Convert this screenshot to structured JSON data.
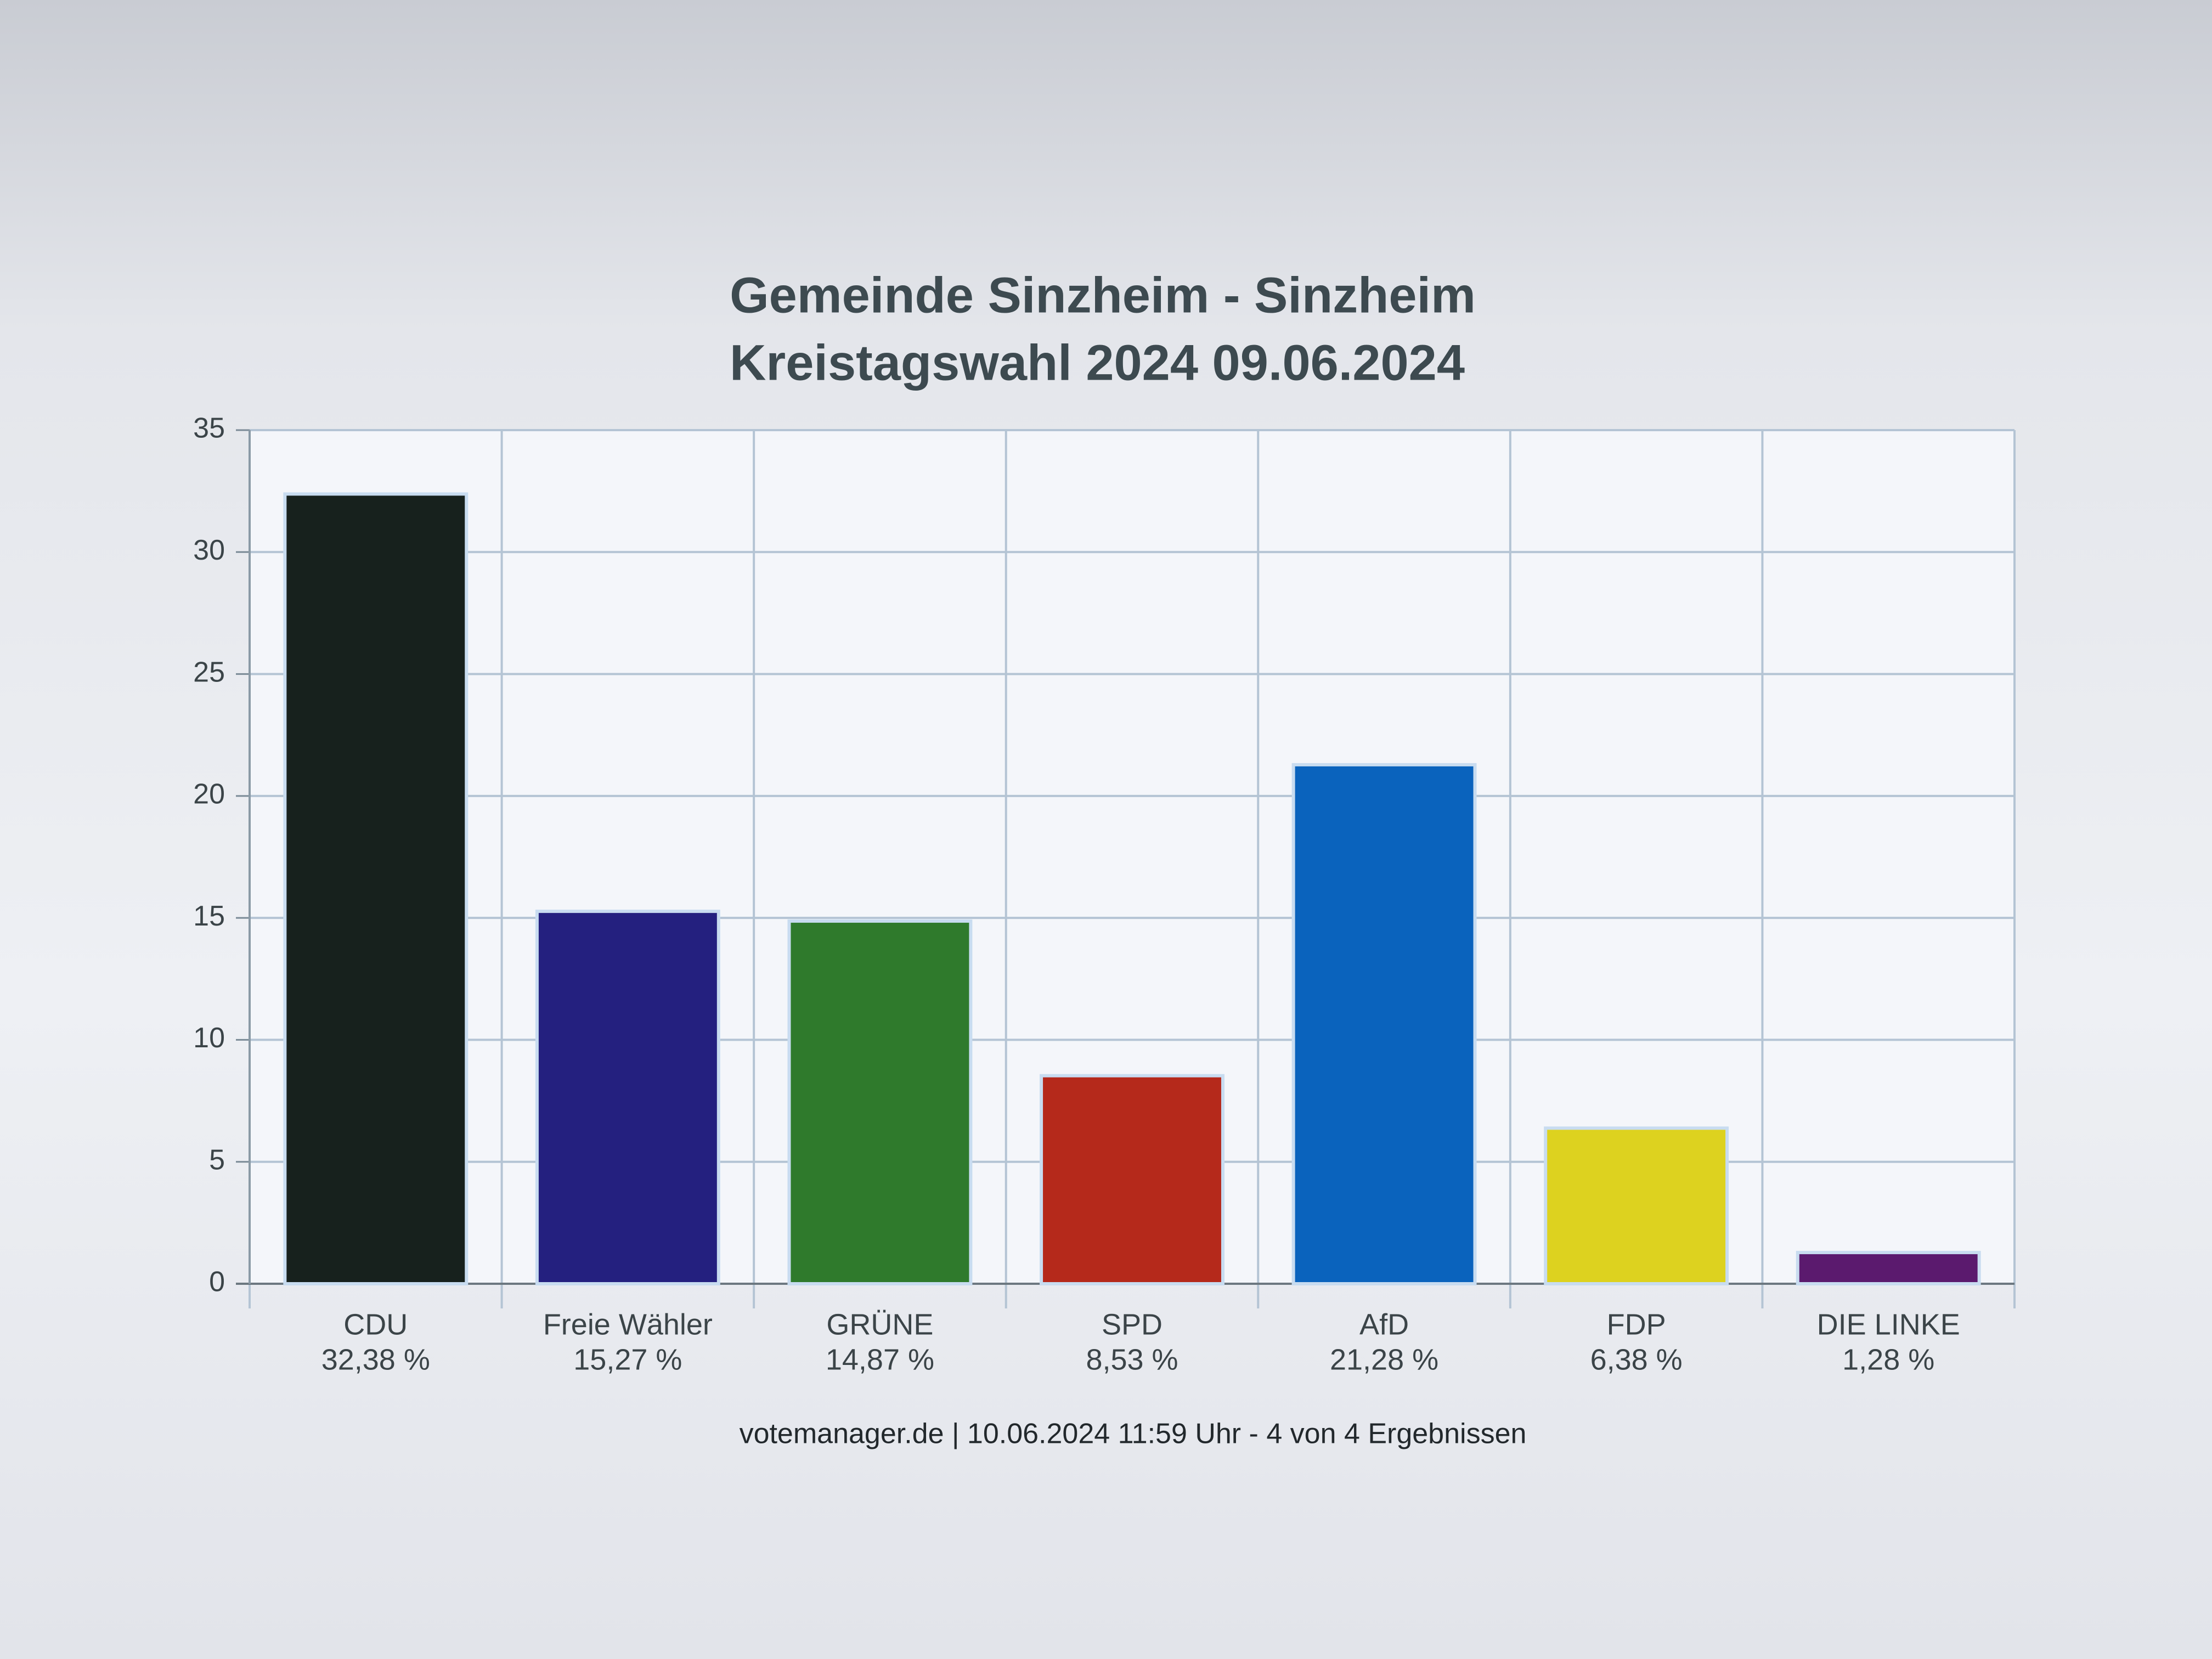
{
  "chart_data": {
    "type": "bar",
    "title": "Gemeinde Sinzheim - Sinzheim",
    "subtitle": "Kreistagswahl 2024 09.06.2024",
    "categories": [
      "CDU",
      "Freie Wähler",
      "GRÜNE",
      "SPD",
      "AfD",
      "FDP",
      "DIE LINKE"
    ],
    "values": [
      32.38,
      15.27,
      14.87,
      8.53,
      21.28,
      6.38,
      1.28
    ],
    "value_labels": [
      "32,38 %",
      "15,27 %",
      "14,87 %",
      "8,53 %",
      "21,28 %",
      "6,38 %",
      "1,28 %"
    ],
    "colors": [
      "#17211d",
      "#24207f",
      "#2f7a2c",
      "#b5291b",
      "#0a63bd",
      "#ddd21f",
      "#5b1a6e"
    ],
    "ylim": [
      0,
      35
    ],
    "yticks": [
      0,
      5,
      10,
      15,
      20,
      25,
      30,
      35
    ],
    "grid": true,
    "source": "votemanager.de | 10.06.2024 11:59 Uhr - 4 von 4 Ergebnissen"
  }
}
